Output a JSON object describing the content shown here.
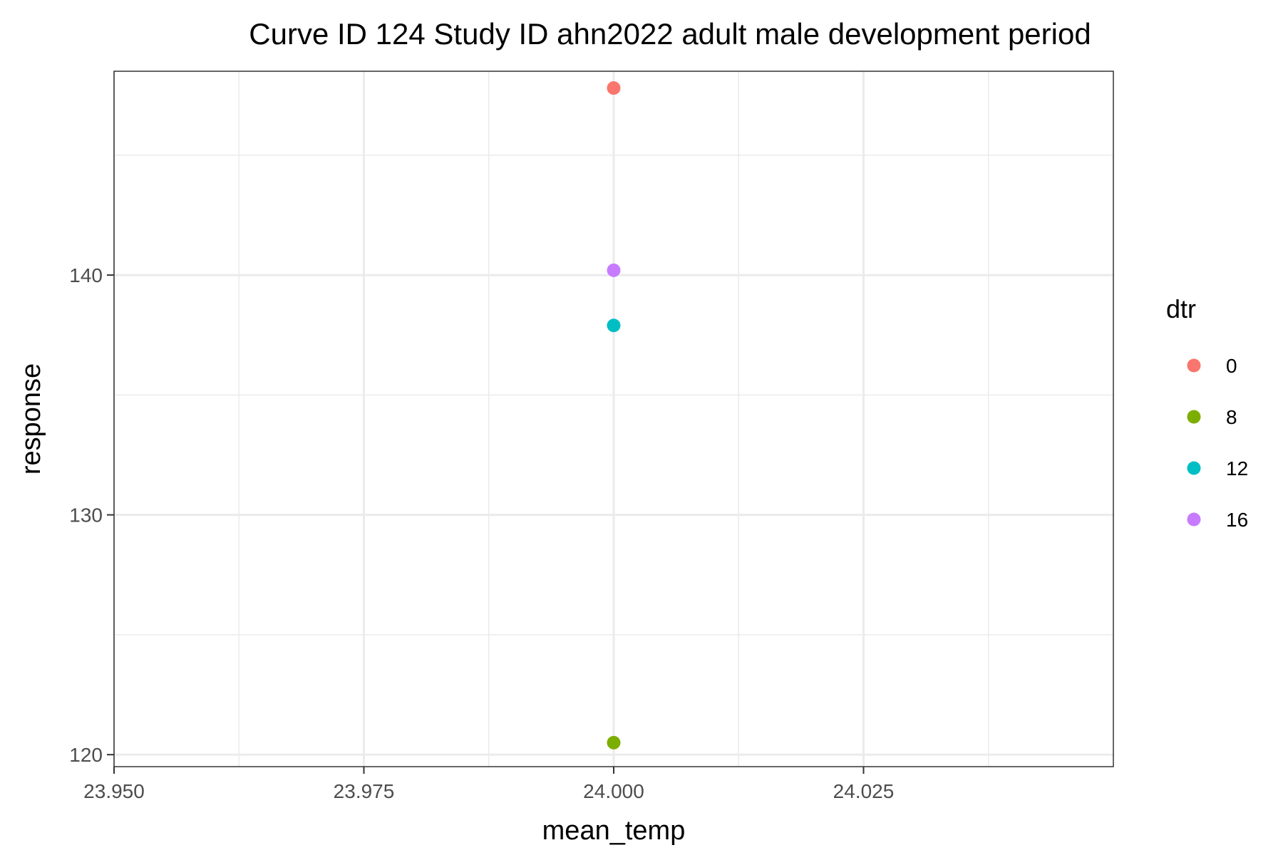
{
  "chart_data": {
    "type": "scatter",
    "title": "Curve ID 124 Study ID ahn2022 adult male development period",
    "xlabel": "mean_temp",
    "ylabel": "response",
    "xlim": [
      23.95,
      24.05
    ],
    "ylim": [
      119.5,
      148.5
    ],
    "x_ticks": [
      23.95,
      23.975,
      24.0,
      24.025
    ],
    "x_tick_labels": [
      "23.950",
      "23.975",
      "24.000",
      "24.025"
    ],
    "y_ticks": [
      120,
      130,
      140
    ],
    "y_tick_labels": [
      "120",
      "130",
      "140"
    ],
    "grid": true,
    "legend": {
      "title": "dtr",
      "position": "right"
    },
    "series": [
      {
        "name": "0",
        "color": "#F8766D",
        "points": [
          {
            "x": 24.0,
            "y": 147.8
          }
        ]
      },
      {
        "name": "8",
        "color": "#7CAE00",
        "points": [
          {
            "x": 24.0,
            "y": 120.5
          }
        ]
      },
      {
        "name": "12",
        "color": "#00BFC4",
        "points": [
          {
            "x": 24.0,
            "y": 137.9
          }
        ]
      },
      {
        "name": "16",
        "color": "#C77CFF",
        "points": [
          {
            "x": 24.0,
            "y": 140.2
          }
        ]
      }
    ]
  }
}
